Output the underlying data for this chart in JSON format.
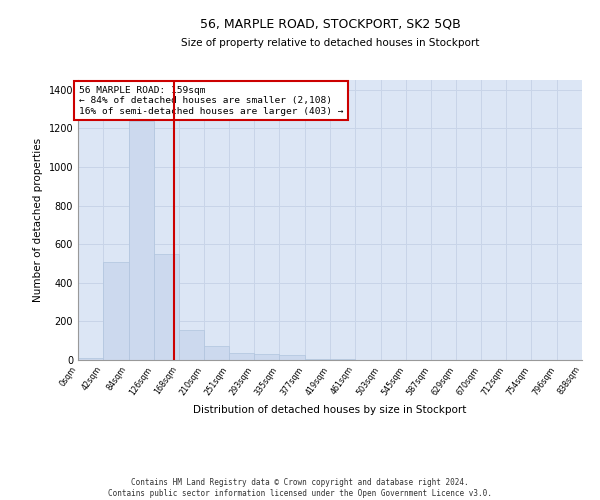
{
  "title": "56, MARPLE ROAD, STOCKPORT, SK2 5QB",
  "subtitle": "Size of property relative to detached houses in Stockport",
  "xlabel": "Distribution of detached houses by size in Stockport",
  "ylabel": "Number of detached properties",
  "footer_line1": "Contains HM Land Registry data © Crown copyright and database right 2024.",
  "footer_line2": "Contains public sector information licensed under the Open Government Licence v3.0.",
  "bar_color": "#ccd9ee",
  "bar_edge_color": "#b0c4de",
  "grid_color": "#c8d4e8",
  "background_color": "#dce6f5",
  "property_size": 159,
  "property_line_color": "#cc0000",
  "annotation_text": "56 MARPLE ROAD: 159sqm\n← 84% of detached houses are smaller (2,108)\n16% of semi-detached houses are larger (403) →",
  "annotation_box_color": "#cc0000",
  "bin_edges": [
    0,
    42,
    84,
    126,
    168,
    210,
    251,
    293,
    335,
    377,
    419,
    461,
    503,
    545,
    587,
    629,
    670,
    712,
    754,
    796,
    838
  ],
  "bin_labels": [
    "0sqm",
    "42sqm",
    "84sqm",
    "126sqm",
    "168sqm",
    "210sqm",
    "251sqm",
    "293sqm",
    "335sqm",
    "377sqm",
    "419sqm",
    "461sqm",
    "503sqm",
    "545sqm",
    "587sqm",
    "629sqm",
    "670sqm",
    "712sqm",
    "754sqm",
    "796sqm",
    "838sqm"
  ],
  "bar_heights": [
    10,
    510,
    1240,
    550,
    155,
    75,
    35,
    30,
    25,
    5,
    5,
    0,
    0,
    0,
    0,
    0,
    0,
    0,
    0,
    0
  ],
  "ylim": [
    0,
    1450
  ],
  "yticks": [
    0,
    200,
    400,
    600,
    800,
    1000,
    1200,
    1400
  ]
}
